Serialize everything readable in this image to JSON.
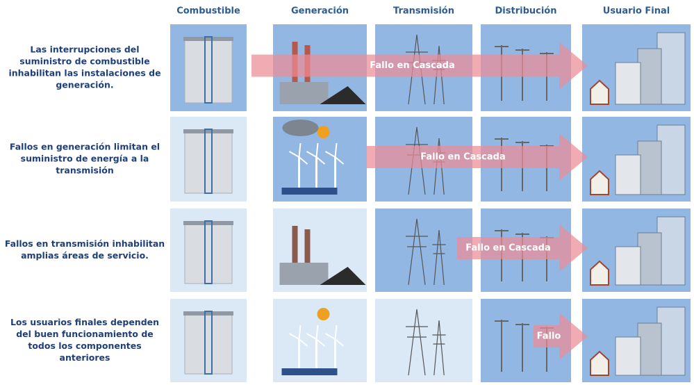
{
  "columns": [
    "Combustible",
    "Generación",
    "Transmisión",
    "Distribución",
    "Usuario Final"
  ],
  "rows": [
    {
      "text": [
        "Las interrupciones del",
        "suministro de combustible",
        "inhabilitan las instalaciones de",
        "generación."
      ],
      "arrow": "Fallo en Cascada"
    },
    {
      "text": [
        "Fallos en generación limitan el",
        "suministro de energía a la",
        "transmisión"
      ],
      "arrow": "Fallo en Cascada"
    },
    {
      "text": [
        "Fallos en transmisión inhabilitan",
        "amplias áreas de servicio."
      ],
      "arrow": "Fallo en Cascada"
    },
    {
      "text": [
        "Los usuarios finales dependen",
        "del buen funcionamiento de",
        "todos los componentes",
        "anteriores"
      ],
      "arrow": "Fallo"
    }
  ]
}
